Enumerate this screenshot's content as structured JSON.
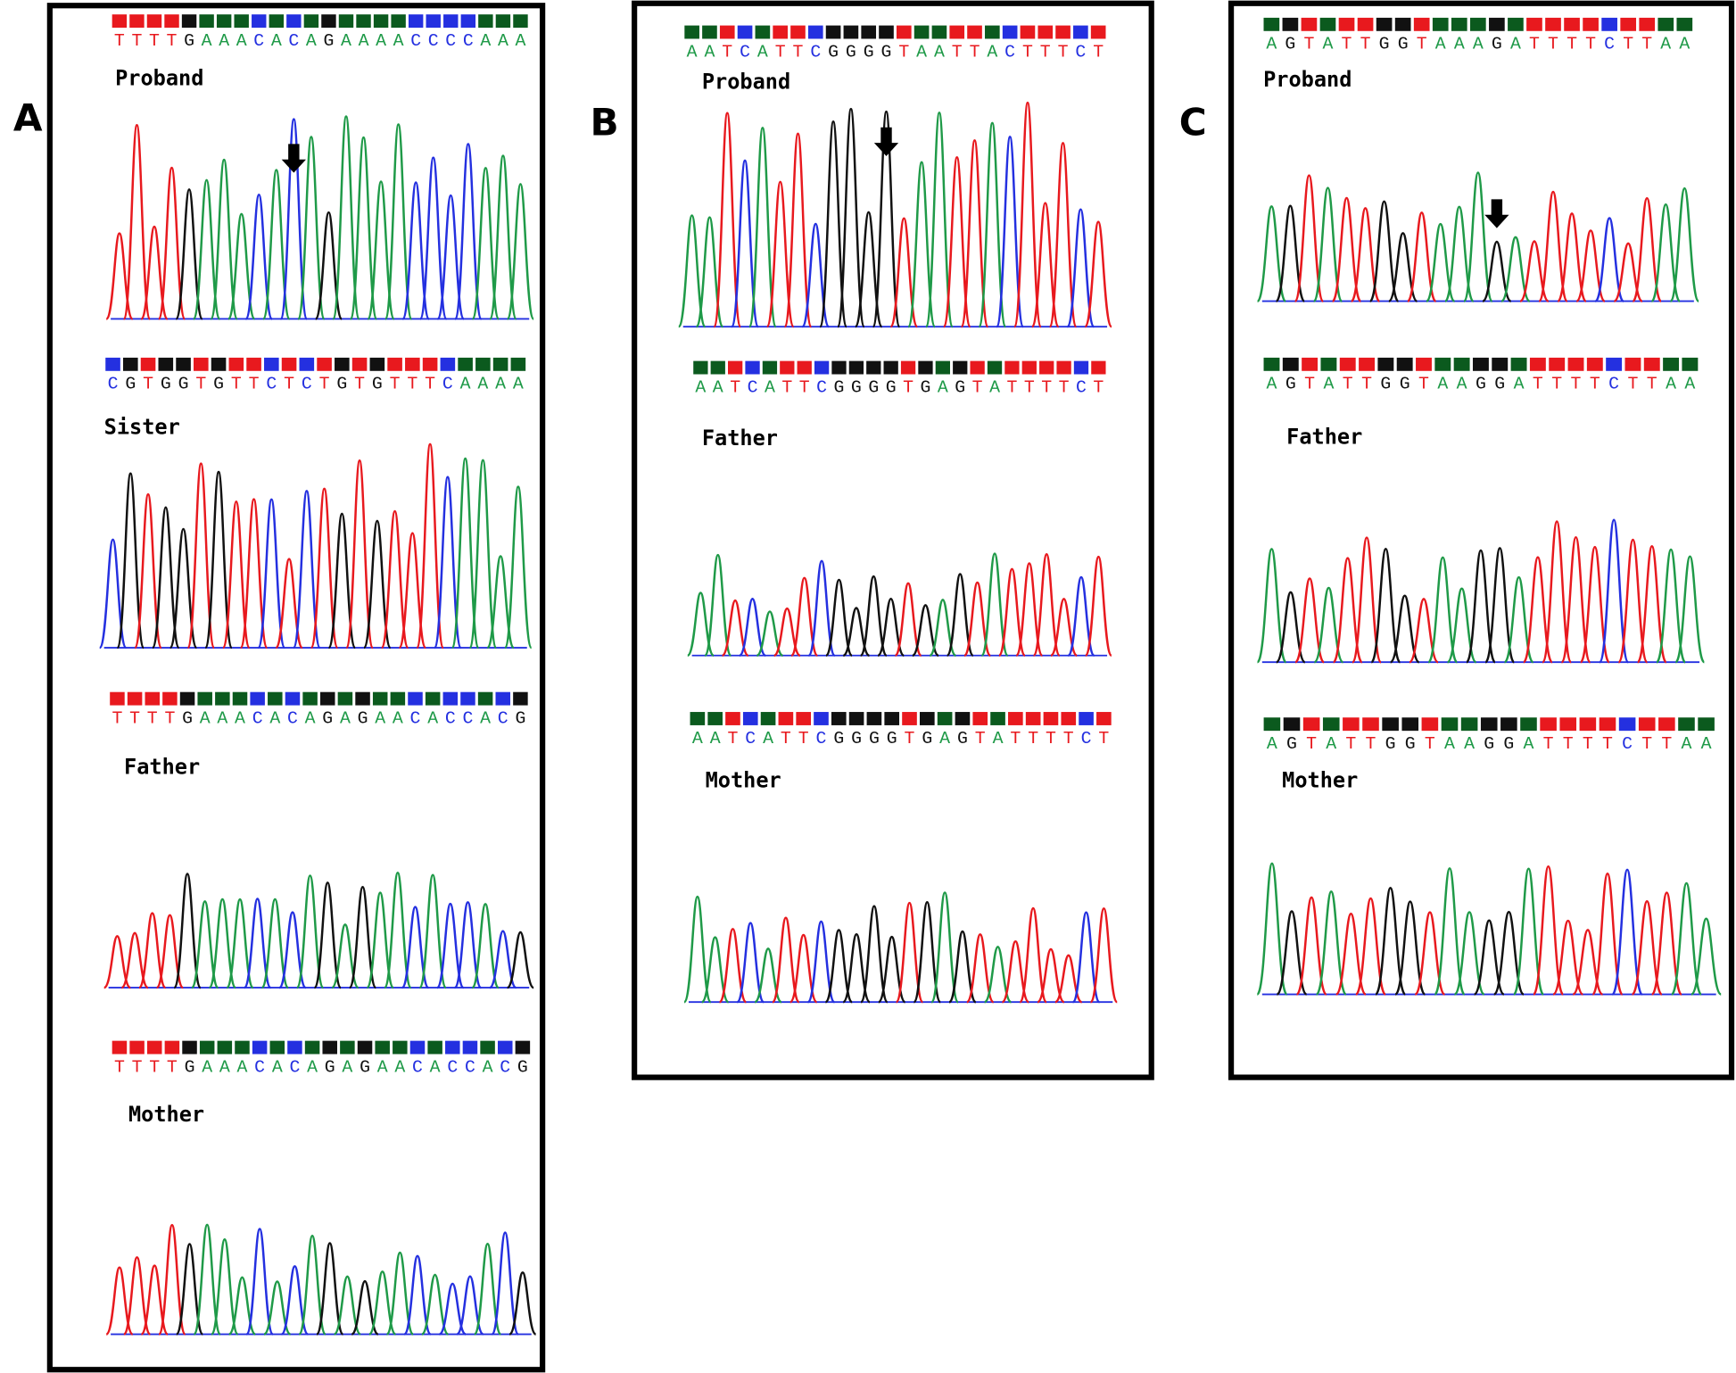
{
  "panels": [
    {
      "label": "A",
      "tracks": [
        {
          "name": "Proband",
          "sequence": "TTTTGAAACACAGAAAACCCCAAA"
        },
        {
          "name": "Sister",
          "sequence": "CGTGGTGTTCTCTGTGTTTCAAAA"
        },
        {
          "name": "Father",
          "sequence": "TTTTGAAACACAGAGAACACCACG"
        },
        {
          "name": "Mother",
          "sequence": "TTTTGAAACACAGAGAACACCACG"
        }
      ]
    },
    {
      "label": "B",
      "tracks": [
        {
          "name": "Proband",
          "sequence": "AATCATTCGGGGTAATTACTTTCT"
        },
        {
          "name": "Father",
          "sequence": "AATCATTCGGGGTGAGTATTTTCT"
        },
        {
          "name": "Mother",
          "sequence": "AATCATTCGGGGTGAGTATTTTCT"
        }
      ]
    },
    {
      "label": "C",
      "tracks": [
        {
          "name": "Proband",
          "sequence": "AGTATTGGTAAAGATTTTCTTAA"
        },
        {
          "name": "Father",
          "sequence": "AGTATTGGTAAGGATTTTCTTAA"
        },
        {
          "name": "Mother",
          "sequence": "AGTATTGGTAAGGATTTTCTTAA"
        }
      ]
    }
  ]
}
